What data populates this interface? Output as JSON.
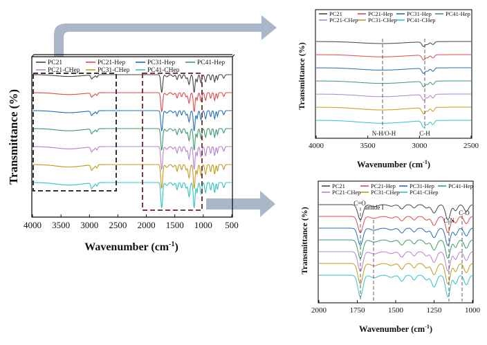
{
  "series_names": [
    "PC21",
    "PC21-Hep",
    "PC31-Hep",
    "PC41-Hep",
    "PC21-CHep",
    "PC31-CHep",
    "PC41-CHep"
  ],
  "series_colors": [
    "#444444",
    "#e0474c",
    "#1f6ebd",
    "#3a9a6a",
    "#b57fd0",
    "#c19a18",
    "#2ec4c4"
  ],
  "chart_data": [
    {
      "id": "main",
      "type": "line",
      "title": "",
      "xlabel": "Wavenumber (cm⁻¹)",
      "ylabel": "Transmittance (%)",
      "xlim": [
        4000,
        500
      ],
      "x_ticks": [
        4000,
        3500,
        3000,
        2500,
        2000,
        1500,
        1000,
        500
      ],
      "series": [
        {
          "name": "PC21",
          "values": "stacked IR spectrum, offset 1"
        },
        {
          "name": "PC21-Hep",
          "values": "stacked IR spectrum, offset 2"
        },
        {
          "name": "PC31-Hep",
          "values": "stacked IR spectrum, offset 3"
        },
        {
          "name": "PC41-Hep",
          "values": "stacked IR spectrum, offset 4"
        },
        {
          "name": "PC21-CHep",
          "values": "stacked IR spectrum, offset 5"
        },
        {
          "name": "PC31-CHep",
          "values": "stacked IR spectrum, offset 6"
        },
        {
          "name": "PC41-CHep",
          "values": "stacked IR spectrum, offset 7"
        }
      ],
      "peaks": [
        3360,
        2960,
        2870,
        1730,
        1640,
        1460,
        1250,
        1160,
        1040,
        960,
        800
      ]
    },
    {
      "id": "zoom_high",
      "type": "line",
      "xlabel": "Wavenumber (cm⁻¹)",
      "ylabel": "Transmittance (%)",
      "xlim": [
        4000,
        2500
      ],
      "x_ticks": [
        4000,
        3500,
        3000,
        2500
      ],
      "annotations": [
        {
          "label": "N-H/O-H",
          "x": 3380
        },
        {
          "label": "C-H",
          "x": 2960
        }
      ]
    },
    {
      "id": "zoom_low",
      "type": "line",
      "xlabel": "Wavenumber (cm⁻¹)",
      "ylabel": "Transmittance (%)",
      "xlim": [
        2000,
        1000
      ],
      "x_ticks": [
        2000,
        1750,
        1500,
        1250,
        1000
      ],
      "annotations": [
        {
          "label": "C=O",
          "x": 1730
        },
        {
          "label": "amide I",
          "x": 1640
        },
        {
          "label": "C-N",
          "x": 1160
        },
        {
          "label": "C-O",
          "x": 1070
        }
      ]
    }
  ],
  "main": {
    "xlabel_base": "Wavenumber (cm",
    "xlabel_sup": "-1",
    "xlabel_end": ")",
    "ylabel": "Transmittance (%)",
    "ticks": [
      "4000",
      "3500",
      "3000",
      "2500",
      "2000",
      "1500",
      "1000",
      "500"
    ]
  },
  "top": {
    "xlabel_base": "Wavenumber (cm",
    "xlabel_sup": "-1",
    "xlabel_end": ")",
    "ylabel": "Transmittance (%)",
    "ticks": [
      "4000",
      "3500",
      "3000",
      "2500"
    ],
    "ann_nh": "N-H/O-H",
    "ann_ch": "C-H"
  },
  "bottom": {
    "xlabel_base": "Wavenumber (cm",
    "xlabel_sup": "-1",
    "xlabel_end": ")",
    "ylabel": "Transmittance (%)",
    "ticks": [
      "2000",
      "1750",
      "1500",
      "1250",
      "1000"
    ],
    "ann_co": "C=O",
    "ann_amide": "amide I",
    "ann_cn": "C-N",
    "ann_c_o": "C-O"
  }
}
